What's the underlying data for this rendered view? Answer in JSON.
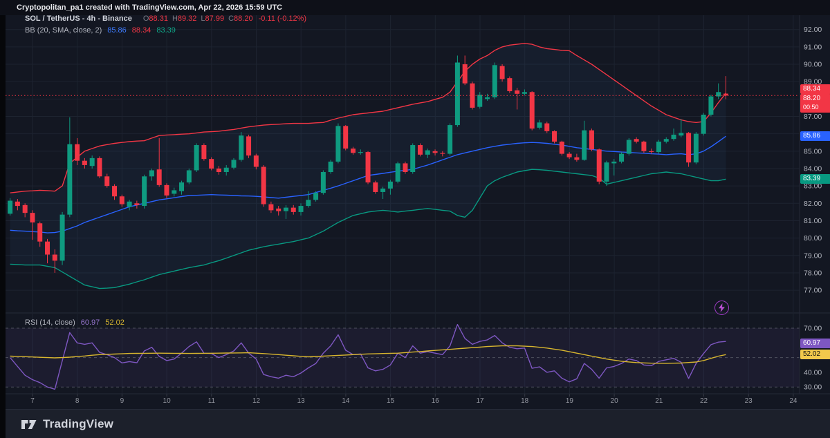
{
  "header": {
    "attribution": "Cryptopolitan_pa1 created with TradingView.com, Apr 22, 2026 15:59 UTC"
  },
  "legend": {
    "symbol": "SOL / TetherUS - 4h - Binance",
    "o_label": "O",
    "o": "88.31",
    "h_label": "H",
    "h": "89.32",
    "l_label": "L",
    "l": "87.99",
    "c_label": "C",
    "c": "88.20",
    "change": "-0.11 (-0.12%)"
  },
  "bb_legend": {
    "label": "BB (20, SMA, close, 2)",
    "basis": "85.86",
    "upper": "88.34",
    "lower": "83.39"
  },
  "rsi_legend": {
    "label": "RSI (14, close)",
    "value": "60.97",
    "ma": "52.02"
  },
  "footer": {
    "logo_text": "TradingView"
  },
  "boost_icon": "lightning",
  "colors": {
    "background": "#131722",
    "grid": "#1d2330",
    "up": "#0f9b80",
    "down": "#f23645",
    "bb_upper": "#f23645",
    "bb_basis": "#2962ff",
    "bb_lower": "#089981",
    "rsi_line": "#7e57c2",
    "rsi_ma_line": "#d8b62f",
    "axis_text": "#9b2b5be"
  },
  "chart_data": {
    "type": "candlestick",
    "title": "SOL / TetherUS - 4h - Binance",
    "interval": "4h",
    "price_axis": {
      "labels": [
        {
          "text": "92.00",
          "value": 92
        },
        {
          "text": "91.00",
          "value": 91
        },
        {
          "text": "90.00",
          "value": 90
        },
        {
          "text": "89.00",
          "value": 89
        },
        {
          "text": "87.00",
          "value": 87
        },
        {
          "text": "85.00",
          "value": 85
        },
        {
          "text": "84.00",
          "value": 84
        },
        {
          "text": "83.00",
          "value": 83
        },
        {
          "text": "82.00",
          "value": 82
        },
        {
          "text": "81.00",
          "value": 81
        },
        {
          "text": "80.00",
          "value": 80
        },
        {
          "text": "79.00",
          "value": 79
        },
        {
          "text": "78.00",
          "value": 78
        },
        {
          "text": "77.00",
          "value": 77
        }
      ],
      "grid": [
        77,
        78,
        79,
        80,
        81,
        82,
        83,
        84,
        85,
        86,
        87,
        88,
        89,
        90,
        91,
        92
      ]
    },
    "rsi_axis": {
      "labels": [
        {
          "text": "70.00",
          "value": 70
        },
        {
          "text": "40.00",
          "value": 40
        },
        {
          "text": "30.00",
          "value": 30
        }
      ],
      "dashed_levels": [
        70,
        50,
        30
      ],
      "band": [
        30,
        70
      ]
    },
    "x_axis": {
      "days": [
        "7",
        "8",
        "9",
        "10",
        "11",
        "12",
        "13",
        "14",
        "15",
        "16",
        "17",
        "18",
        "19",
        "20",
        "21",
        "22",
        "23",
        "24"
      ]
    },
    "badges": {
      "bb_upper": {
        "text": "88.34",
        "price": 88.34,
        "bg": "#f23645",
        "fg": "#ffffff"
      },
      "last": {
        "text": "88.20",
        "sub": "00:50",
        "price": 88.2,
        "bg": "#f23645",
        "fg": "#ffffff"
      },
      "bb_basis": {
        "text": "85.86",
        "price": 85.86,
        "bg": "#2962ff",
        "fg": "#ffffff"
      },
      "bb_lower": {
        "text": "83.39",
        "price": 83.39,
        "bg": "#089981",
        "fg": "#ffffff"
      },
      "rsi": {
        "text": "60.97",
        "value": 60.97,
        "bg": "#7e57c2",
        "fg": "#ffffff"
      },
      "rsi_ma": {
        "text": "52.02",
        "value": 52.02,
        "bg": "#f2c94c",
        "fg": "#111111"
      }
    },
    "last_price": 88.2,
    "candles": [
      [
        81.4,
        82.3,
        81.3,
        82.15
      ],
      [
        82.1,
        82.25,
        81.6,
        81.85
      ],
      [
        81.9,
        82.0,
        81.2,
        81.45
      ],
      [
        81.45,
        81.6,
        79.9,
        80.9
      ],
      [
        80.85,
        80.95,
        79.5,
        79.8
      ],
      [
        79.8,
        79.95,
        78.55,
        79.05
      ],
      [
        79.05,
        79.35,
        78.0,
        78.7
      ],
      [
        78.7,
        81.5,
        78.45,
        81.35
      ],
      [
        81.35,
        86.95,
        81.2,
        85.4
      ],
      [
        85.4,
        85.75,
        84.2,
        84.45
      ],
      [
        84.45,
        84.6,
        84.0,
        84.2
      ],
      [
        84.15,
        84.75,
        84.0,
        84.6
      ],
      [
        84.6,
        84.7,
        83.45,
        83.55
      ],
      [
        83.55,
        83.7,
        82.9,
        83.0
      ],
      [
        83.0,
        83.1,
        82.2,
        82.4
      ],
      [
        82.4,
        82.5,
        81.8,
        81.95
      ],
      [
        81.8,
        82.2,
        81.6,
        82.1
      ],
      [
        82.0,
        82.15,
        81.7,
        81.9
      ],
      [
        81.85,
        83.65,
        81.7,
        83.55
      ],
      [
        83.55,
        84.0,
        83.3,
        83.9
      ],
      [
        83.95,
        85.75,
        82.95,
        83.05
      ],
      [
        83.05,
        83.15,
        82.3,
        82.45
      ],
      [
        82.55,
        82.9,
        82.4,
        82.75
      ],
      [
        82.7,
        83.3,
        82.5,
        83.2
      ],
      [
        83.2,
        84.0,
        83.1,
        83.9
      ],
      [
        83.9,
        85.45,
        83.8,
        85.35
      ],
      [
        85.35,
        85.45,
        84.45,
        84.55
      ],
      [
        84.55,
        84.65,
        83.9,
        84.0
      ],
      [
        84.0,
        84.15,
        83.65,
        83.8
      ],
      [
        83.8,
        84.2,
        83.6,
        84.05
      ],
      [
        84.05,
        84.6,
        83.95,
        84.5
      ],
      [
        84.5,
        86.1,
        84.4,
        85.9
      ],
      [
        85.85,
        85.95,
        84.6,
        84.75
      ],
      [
        84.75,
        84.85,
        83.95,
        84.1
      ],
      [
        84.1,
        84.2,
        81.8,
        81.95
      ],
      [
        81.95,
        82.1,
        81.45,
        81.6
      ],
      [
        81.7,
        81.85,
        81.3,
        81.55
      ],
      [
        81.55,
        81.9,
        81.1,
        81.75
      ],
      [
        81.75,
        81.9,
        81.35,
        81.5
      ],
      [
        81.5,
        82.0,
        81.3,
        81.85
      ],
      [
        81.85,
        82.7,
        81.75,
        82.2
      ],
      [
        82.2,
        82.7,
        82.1,
        82.6
      ],
      [
        82.6,
        83.9,
        82.5,
        83.8
      ],
      [
        83.8,
        84.5,
        83.7,
        84.4
      ],
      [
        84.4,
        86.6,
        84.3,
        86.45
      ],
      [
        86.45,
        86.5,
        85.05,
        85.15
      ],
      [
        85.15,
        85.25,
        84.8,
        84.9
      ],
      [
        84.9,
        85.1,
        84.8,
        84.95
      ],
      [
        84.95,
        85.0,
        83.1,
        83.2
      ],
      [
        83.2,
        83.3,
        82.55,
        82.65
      ],
      [
        82.65,
        82.95,
        82.25,
        82.85
      ],
      [
        82.85,
        83.35,
        82.5,
        83.25
      ],
      [
        83.25,
        84.4,
        83.15,
        84.3
      ],
      [
        84.3,
        84.4,
        83.7,
        83.8
      ],
      [
        83.8,
        85.45,
        83.7,
        85.35
      ],
      [
        85.35,
        85.45,
        84.7,
        84.8
      ],
      [
        84.8,
        85.15,
        84.6,
        85.05
      ],
      [
        85.0,
        85.1,
        84.75,
        84.9
      ],
      [
        84.9,
        85.0,
        84.7,
        84.85
      ],
      [
        84.85,
        86.6,
        84.75,
        86.5
      ],
      [
        86.5,
        90.5,
        86.4,
        90.1
      ],
      [
        90.0,
        90.5,
        88.8,
        88.9
      ],
      [
        88.9,
        89.0,
        87.4,
        87.5
      ],
      [
        87.55,
        88.4,
        87.45,
        88.25
      ],
      [
        88.0,
        88.3,
        87.9,
        88.1
      ],
      [
        88.1,
        90.1,
        88.0,
        89.95
      ],
      [
        89.9,
        90.0,
        89.0,
        89.15
      ],
      [
        89.2,
        89.3,
        88.35,
        88.45
      ],
      [
        88.5,
        88.65,
        87.4,
        88.3
      ],
      [
        88.3,
        88.55,
        88.2,
        88.4
      ],
      [
        88.4,
        88.45,
        86.2,
        86.3
      ],
      [
        86.35,
        86.8,
        86.25,
        86.65
      ],
      [
        86.6,
        86.7,
        86.05,
        86.15
      ],
      [
        86.15,
        86.2,
        85.45,
        85.55
      ],
      [
        85.55,
        85.6,
        84.75,
        84.85
      ],
      [
        84.85,
        84.95,
        84.55,
        84.65
      ],
      [
        84.65,
        84.85,
        84.4,
        84.5
      ],
      [
        84.5,
        86.75,
        84.45,
        86.2
      ],
      [
        86.2,
        86.3,
        85.0,
        85.1
      ],
      [
        85.1,
        85.15,
        83.1,
        83.25
      ],
      [
        83.25,
        84.45,
        83.0,
        84.35
      ],
      [
        84.3,
        84.55,
        83.6,
        84.4
      ],
      [
        84.4,
        84.95,
        84.3,
        84.85
      ],
      [
        84.85,
        85.75,
        84.75,
        85.65
      ],
      [
        85.7,
        85.8,
        85.45,
        85.55
      ],
      [
        85.55,
        85.6,
        84.9,
        85.0
      ],
      [
        85.0,
        85.15,
        84.85,
        84.95
      ],
      [
        84.95,
        85.65,
        84.85,
        85.55
      ],
      [
        85.55,
        85.8,
        85.45,
        85.7
      ],
      [
        85.7,
        86.3,
        85.6,
        85.95
      ],
      [
        85.9,
        86.85,
        85.8,
        86.05
      ],
      [
        86.05,
        86.1,
        84.1,
        84.35
      ],
      [
        84.35,
        86.1,
        84.25,
        86.0
      ],
      [
        86.0,
        87.2,
        85.9,
        87.1
      ],
      [
        87.1,
        88.25,
        87.0,
        88.15
      ],
      [
        88.15,
        88.9,
        88.0,
        88.4
      ],
      [
        88.31,
        89.32,
        87.99,
        88.2
      ]
    ],
    "bb_upper": [
      82.6,
      82.65,
      82.7,
      82.72,
      82.75,
      82.73,
      82.7,
      83.0,
      84.3,
      84.65,
      85.0,
      85.15,
      85.3,
      85.38,
      85.45,
      85.5,
      85.55,
      85.58,
      85.6,
      85.75,
      85.9,
      85.93,
      85.95,
      85.98,
      86.0,
      86.05,
      86.1,
      86.12,
      86.15,
      86.2,
      86.25,
      86.33,
      86.4,
      86.45,
      86.5,
      86.53,
      86.55,
      86.58,
      86.6,
      86.6,
      86.6,
      86.63,
      86.65,
      86.78,
      86.9,
      87.0,
      87.1,
      87.15,
      87.2,
      87.25,
      87.3,
      87.4,
      87.5,
      87.6,
      87.7,
      87.78,
      87.85,
      87.98,
      88.1,
      88.4,
      89.0,
      89.6,
      90.0,
      90.3,
      90.5,
      90.8,
      91.0,
      91.1,
      91.15,
      91.2,
      91.15,
      91.0,
      90.9,
      90.85,
      90.8,
      90.78,
      90.5,
      90.25,
      90.0,
      89.7,
      89.4,
      89.1,
      88.8,
      88.5,
      88.2,
      87.9,
      87.6,
      87.35,
      87.1,
      86.95,
      86.8,
      86.7,
      86.65,
      86.7,
      87.2,
      87.8,
      88.34
    ],
    "bb_basis": [
      80.45,
      80.42,
      80.4,
      80.37,
      80.35,
      80.3,
      80.32,
      80.4,
      80.55,
      80.7,
      80.9,
      81.05,
      81.2,
      81.35,
      81.5,
      81.65,
      81.8,
      81.9,
      82.0,
      82.1,
      82.2,
      82.26,
      82.32,
      82.39,
      82.45,
      82.46,
      82.48,
      82.5,
      82.48,
      82.47,
      82.45,
      82.43,
      82.42,
      82.4,
      82.37,
      82.33,
      82.3,
      82.35,
      82.4,
      82.45,
      82.5,
      82.62,
      82.75,
      82.87,
      83.0,
      83.15,
      83.3,
      83.45,
      83.6,
      83.66,
      83.72,
      83.79,
      83.85,
      83.9,
      83.95,
      84.08,
      84.2,
      84.35,
      84.5,
      84.65,
      84.8,
      84.9,
      85.0,
      85.1,
      85.2,
      85.28,
      85.35,
      85.4,
      85.45,
      85.48,
      85.5,
      85.48,
      85.45,
      85.4,
      85.35,
      85.28,
      85.2,
      85.15,
      85.1,
      85.05,
      85.0,
      84.98,
      84.95,
      84.93,
      84.9,
      84.88,
      84.85,
      84.83,
      84.8,
      84.83,
      84.85,
      84.8,
      84.85,
      85.0,
      85.25,
      85.55,
      85.86
    ],
    "bb_lower": [
      78.5,
      78.48,
      78.45,
      78.45,
      78.45,
      78.38,
      78.3,
      78.05,
      77.8,
      77.55,
      77.3,
      77.2,
      77.1,
      77.12,
      77.15,
      77.25,
      77.35,
      77.48,
      77.6,
      77.75,
      77.9,
      78.0,
      78.1,
      78.2,
      78.3,
      78.38,
      78.45,
      78.58,
      78.7,
      78.85,
      79.0,
      79.15,
      79.3,
      79.4,
      79.5,
      79.58,
      79.65,
      79.73,
      79.8,
      79.9,
      80.0,
      80.2,
      80.4,
      80.65,
      80.9,
      81.1,
      81.3,
      81.4,
      81.5,
      81.55,
      81.6,
      81.55,
      81.5,
      81.55,
      81.6,
      81.65,
      81.7,
      81.65,
      81.6,
      81.55,
      81.3,
      81.2,
      81.6,
      82.3,
      83.0,
      83.3,
      83.5,
      83.65,
      83.8,
      83.88,
      83.95,
      83.93,
      83.9,
      83.85,
      83.8,
      83.75,
      83.7,
      83.65,
      83.6,
      83.45,
      83.1,
      83.2,
      83.3,
      83.4,
      83.5,
      83.6,
      83.7,
      83.75,
      83.8,
      83.75,
      83.7,
      83.6,
      83.5,
      83.4,
      83.3,
      83.3,
      83.39
    ],
    "rsi": [
      50,
      44,
      38,
      35,
      33,
      30,
      28.5,
      48,
      67,
      60,
      59,
      60,
      53.5,
      52,
      50,
      46.4,
      47.3,
      46.5,
      54.5,
      57,
      50.8,
      48,
      49,
      53,
      57.5,
      60.7,
      53,
      52.7,
      50,
      52,
      54.5,
      60,
      53,
      49,
      38.5,
      37,
      36,
      38,
      37,
      39.5,
      43,
      46,
      53,
      58,
      65.5,
      55,
      52,
      52.5,
      43,
      41,
      42,
      45,
      53,
      50,
      58,
      53,
      54,
      53,
      52,
      58,
      72.5,
      63,
      59,
      61,
      62,
      65,
      60,
      57,
      56,
      56.5,
      42.7,
      43.7,
      40,
      41,
      36,
      33.5,
      35.6,
      46,
      42,
      36,
      43,
      44,
      46,
      49,
      48,
      45,
      44.5,
      47.4,
      48.5,
      49.5,
      46.8,
      35.8,
      46,
      52.7,
      58.8,
      60.5,
      60.97
    ],
    "rsi_ma": [
      51.0,
      50.8,
      50.6,
      50.4,
      50.2,
      50.0,
      49.8,
      50.0,
      50.3,
      50.7,
      51.1,
      51.6,
      52.0,
      52.2,
      52.4,
      52.6,
      52.8,
      52.85,
      52.9,
      52.95,
      53.0,
      52.95,
      52.9,
      52.85,
      52.8,
      52.85,
      52.9,
      52.95,
      53.0,
      53.1,
      53.15,
      53.2,
      53.3,
      53.0,
      52.7,
      52.35,
      52.0,
      51.6,
      51.2,
      50.85,
      50.5,
      50.75,
      51.0,
      51.25,
      51.5,
      51.75,
      52.0,
      52.25,
      52.5,
      52.6,
      52.75,
      52.9,
      53.0,
      53.4,
      53.75,
      54.1,
      54.5,
      54.9,
      55.25,
      55.6,
      56.0,
      56.4,
      56.75,
      57.1,
      57.5,
      57.75,
      58.0,
      58.0,
      58.0,
      57.75,
      57.5,
      57.0,
      56.5,
      55.75,
      55.0,
      54.0,
      53.0,
      52.0,
      51.0,
      50.0,
      49.0,
      48.25,
      47.5,
      47.05,
      46.6,
      46.4,
      46.2,
      46.15,
      46.1,
      46.2,
      46.3,
      46.65,
      47.0,
      48.0,
      49.5,
      51.0,
      52.02
    ]
  }
}
